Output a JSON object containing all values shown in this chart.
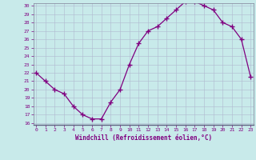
{
  "x": [
    0,
    1,
    2,
    3,
    4,
    5,
    6,
    7,
    8,
    9,
    10,
    11,
    12,
    13,
    14,
    15,
    16,
    17,
    18,
    19,
    20,
    21,
    22,
    23
  ],
  "y": [
    22,
    21,
    20,
    19.5,
    18,
    17,
    16.5,
    16.5,
    18.5,
    20,
    23,
    25.5,
    27,
    27.5,
    28.5,
    29.5,
    30.5,
    30.5,
    30,
    29.5,
    28,
    27.5,
    26,
    21.5
  ],
  "xlabel": "Windchill (Refroidissement éolien,°C)",
  "ylim_min": 16,
  "ylim_max": 30,
  "xlim_min": 0,
  "xlim_max": 23,
  "yticks": [
    16,
    17,
    18,
    19,
    20,
    21,
    22,
    23,
    24,
    25,
    26,
    27,
    28,
    29,
    30
  ],
  "xticks": [
    0,
    1,
    2,
    3,
    4,
    5,
    6,
    7,
    8,
    9,
    10,
    11,
    12,
    13,
    14,
    15,
    16,
    17,
    18,
    19,
    20,
    21,
    22,
    23
  ],
  "line_color": "#800080",
  "bg_color": "#c8eaea",
  "grid_color": "#b0b8d0",
  "tick_label_color": "#800080",
  "axis_label_color": "#800080",
  "marker": "+",
  "markersize": 4,
  "linewidth": 0.9
}
